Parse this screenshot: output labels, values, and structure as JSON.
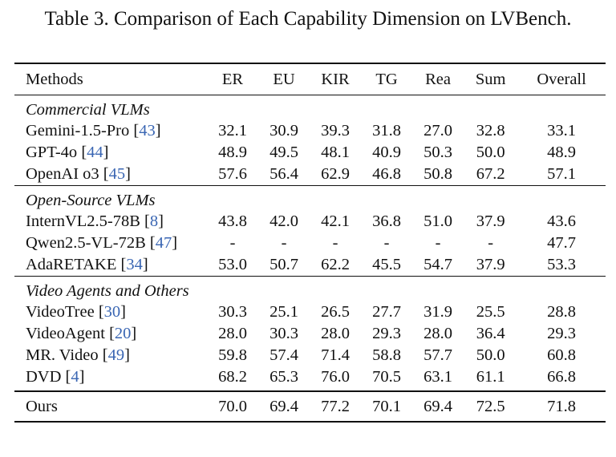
{
  "caption": "Table 3. Comparison of Each Capability Dimension on LVBench.",
  "columns": [
    "Methods",
    "ER",
    "EU",
    "KIR",
    "TG",
    "Rea",
    "Sum",
    "Overall"
  ],
  "groups": [
    {
      "title": "Commercial VLMs",
      "rows": [
        {
          "method": "Gemini-1.5-Pro",
          "cite": "43",
          "values": [
            "32.1",
            "30.9",
            "39.3",
            "31.8",
            "27.0",
            "32.8",
            "33.1"
          ]
        },
        {
          "method": "GPT-4o",
          "cite": "44",
          "values": [
            "48.9",
            "49.5",
            "48.1",
            "40.9",
            "50.3",
            "50.0",
            "48.9"
          ]
        },
        {
          "method": "OpenAI o3",
          "cite": "45",
          "values": [
            "57.6",
            "56.4",
            "62.9",
            "46.8",
            "50.8",
            "67.2",
            "57.1"
          ]
        }
      ]
    },
    {
      "title": "Open-Source VLMs",
      "rows": [
        {
          "method": "InternVL2.5-78B",
          "cite": "8",
          "values": [
            "43.8",
            "42.0",
            "42.1",
            "36.8",
            "51.0",
            "37.9",
            "43.6"
          ]
        },
        {
          "method": "Qwen2.5-VL-72B",
          "cite": "47",
          "values": [
            "-",
            "-",
            "-",
            "-",
            "-",
            "-",
            "47.7"
          ]
        },
        {
          "method": "AdaRETAKE",
          "cite": "34",
          "values": [
            "53.0",
            "50.7",
            "62.2",
            "45.5",
            "54.7",
            "37.9",
            "53.3"
          ]
        }
      ]
    },
    {
      "title": "Video Agents and Others",
      "rows": [
        {
          "method": "VideoTree",
          "cite": "30",
          "values": [
            "30.3",
            "25.1",
            "26.5",
            "27.7",
            "31.9",
            "25.5",
            "28.8"
          ]
        },
        {
          "method": "VideoAgent",
          "cite": "20",
          "values": [
            "28.0",
            "30.3",
            "28.0",
            "29.3",
            "28.0",
            "36.4",
            "29.3"
          ]
        },
        {
          "method": "MR. Video",
          "cite": "49",
          "values": [
            "59.8",
            "57.4",
            "71.4",
            "58.8",
            "57.7",
            "50.0",
            "60.8"
          ]
        },
        {
          "method": "DVD",
          "cite": "4",
          "values": [
            "68.2",
            "65.3",
            "76.0",
            "70.5",
            "63.1",
            "61.1",
            "66.8"
          ],
          "bold": [
            false,
            false,
            false,
            true,
            false,
            false,
            false
          ]
        }
      ]
    }
  ],
  "ours": {
    "method": "Ours",
    "values": [
      "70.0",
      "69.4",
      "77.2",
      "70.1",
      "69.4",
      "72.5",
      "71.8"
    ],
    "bold": [
      true,
      true,
      true,
      false,
      true,
      true,
      true
    ]
  }
}
